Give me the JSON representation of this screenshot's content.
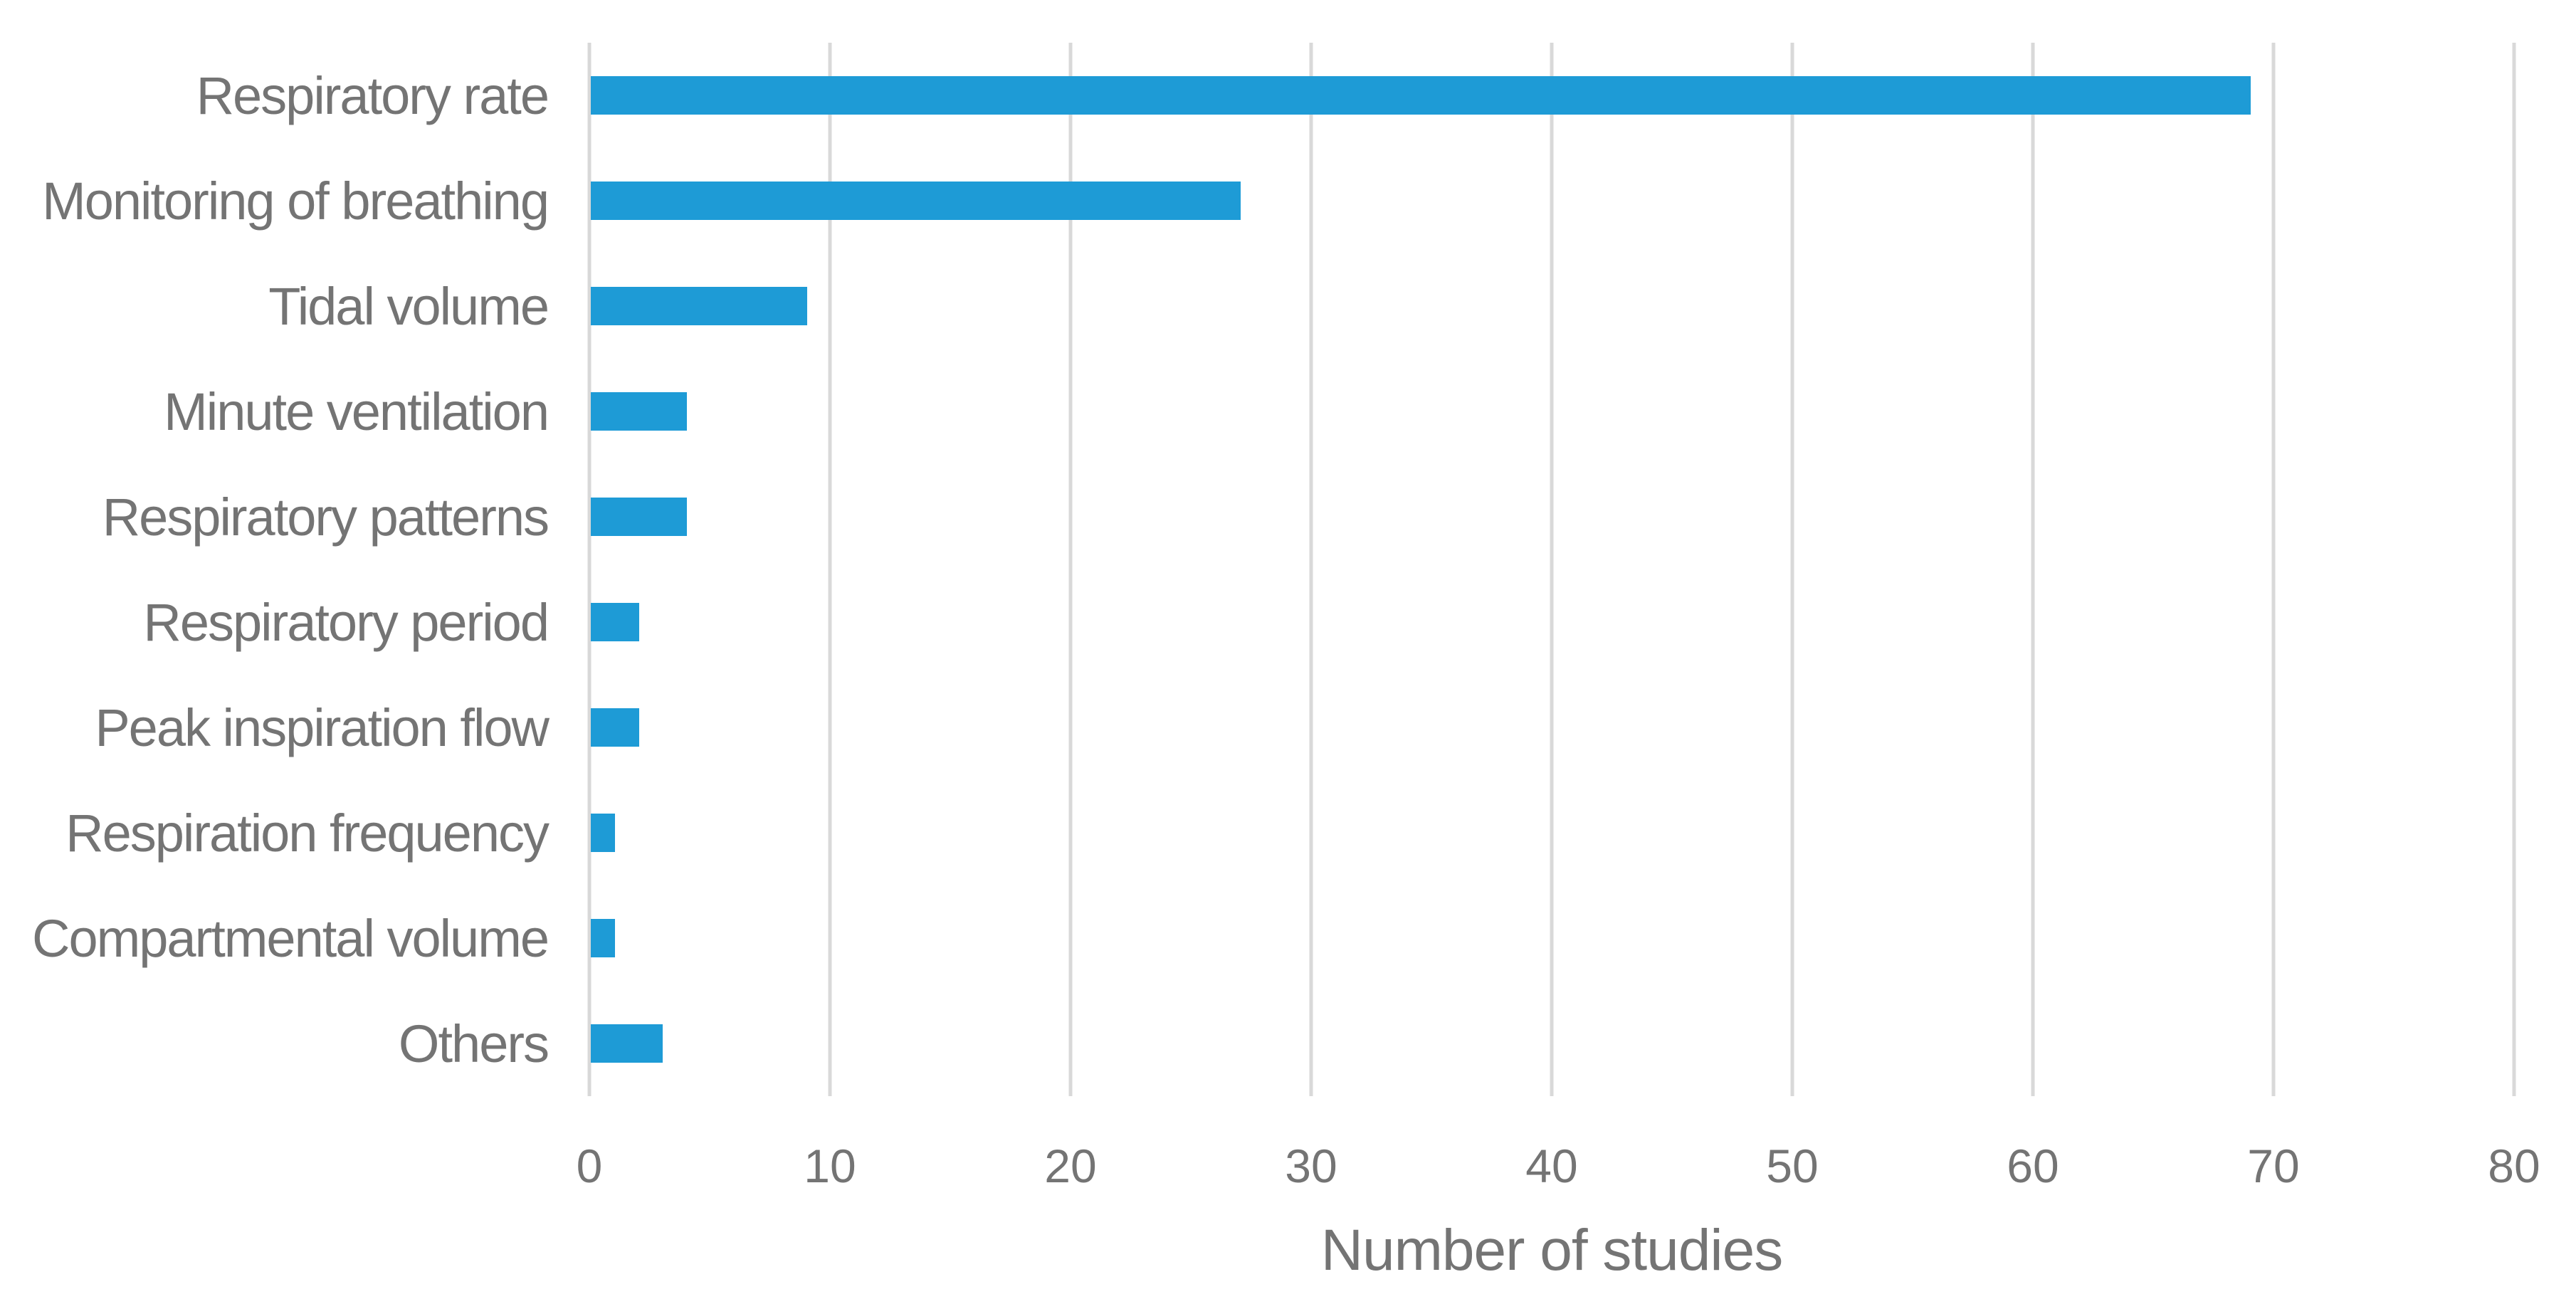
{
  "chart_data": {
    "type": "bar",
    "orientation": "horizontal",
    "title": "",
    "xlabel": "Number of studies",
    "ylabel": "",
    "categories": [
      "Respiratory rate",
      "Monitoring of breathing",
      "Tidal volume",
      "Minute ventilation",
      "Respiratory patterns",
      "Respiratory period",
      "Peak inspiration flow",
      "Respiration frequency",
      "Compartmental volume",
      "Others"
    ],
    "values": [
      69,
      27,
      9,
      4,
      4,
      2,
      2,
      1,
      1,
      3
    ],
    "xlim": [
      0,
      80
    ],
    "x_ticks": [
      0,
      10,
      20,
      30,
      40,
      50,
      60,
      70,
      80
    ],
    "grid": true,
    "gridlines": "vertical",
    "legend": false
  },
  "colors": {
    "bar": "#1E9BD6",
    "gridline": "#D9D9D9",
    "axis_line": "#D8D8D8",
    "text": "#747474",
    "background": "#FFFFFF"
  }
}
